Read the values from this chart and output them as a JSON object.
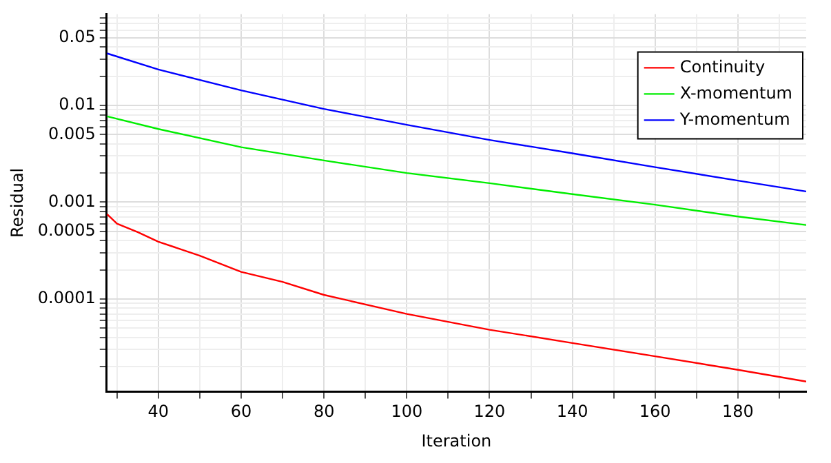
{
  "chart_data": {
    "type": "line",
    "xlabel": "Iteration",
    "ylabel": "Residual",
    "log": "y",
    "grid": true,
    "legend": "top right",
    "marker": "none",
    "line_style": "solid",
    "xlim": [
      27.5,
      196.5
    ],
    "ylim": [
      1.1e-05,
      0.088
    ],
    "xticks": [
      {
        "value": 30,
        "label": null
      },
      40,
      {
        "value": 50,
        "label": null
      },
      60,
      {
        "value": 70,
        "label": null
      },
      80,
      {
        "value": 90,
        "label": null
      },
      100,
      {
        "value": 110,
        "label": null
      },
      120,
      {
        "value": 130,
        "label": null
      },
      140,
      {
        "value": 150,
        "label": null
      },
      160,
      {
        "value": 170,
        "label": null
      },
      180,
      {
        "value": 190,
        "label": null
      }
    ],
    "yticks": [
      {
        "value": 2e-05,
        "label": null
      },
      {
        "value": 3e-05,
        "label": null
      },
      {
        "value": 4e-05,
        "label": null
      },
      {
        "value": 5e-05,
        "label": null
      },
      {
        "value": 6e-05,
        "label": null
      },
      {
        "value": 7e-05,
        "label": null
      },
      {
        "value": 8e-05,
        "label": null
      },
      {
        "value": 9e-05,
        "label": null
      },
      0.0001,
      {
        "value": 0.0002,
        "label": null
      },
      {
        "value": 0.0003,
        "label": null
      },
      {
        "value": 0.0004,
        "label": null
      },
      0.0005,
      {
        "value": 0.0006,
        "label": null
      },
      {
        "value": 0.0007,
        "label": null
      },
      {
        "value": 0.0008,
        "label": null
      },
      {
        "value": 0.0009,
        "label": null
      },
      0.001,
      {
        "value": 0.002,
        "label": null
      },
      {
        "value": 0.003,
        "label": null
      },
      {
        "value": 0.004,
        "label": null
      },
      0.005,
      {
        "value": 0.006,
        "label": null
      },
      {
        "value": 0.007,
        "label": null
      },
      {
        "value": 0.008,
        "label": null
      },
      {
        "value": 0.009,
        "label": null
      },
      0.01,
      {
        "value": 0.02,
        "label": null
      },
      {
        "value": 0.03,
        "label": null
      },
      {
        "value": 0.04,
        "label": null
      },
      0.05,
      {
        "value": 0.06,
        "label": null
      },
      {
        "value": 0.07,
        "label": null
      },
      {
        "value": 0.08,
        "label": null
      }
    ],
    "series": [
      {
        "name": "Continuity",
        "color": "#ff0000",
        "x": [
          27.6,
          30,
          35,
          40,
          50,
          60,
          70,
          80,
          100,
          120,
          140,
          160,
          180,
          196.5
        ],
        "values": [
          0.00075,
          0.0006,
          0.00049,
          0.00039,
          0.00028,
          0.00019,
          0.00015,
          0.00011,
          7e-05,
          4.8e-05,
          3.5e-05,
          2.55e-05,
          1.85e-05,
          1.4e-05
        ]
      },
      {
        "name": "X-momentum",
        "color": "#00ee00",
        "x": [
          27.6,
          40,
          60,
          80,
          100,
          120,
          140,
          160,
          180,
          196.5
        ],
        "values": [
          0.0077,
          0.0057,
          0.0037,
          0.0027,
          0.002,
          0.00157,
          0.00121,
          0.00094,
          0.00071,
          0.00058
        ]
      },
      {
        "name": "Y-momentum",
        "color": "#0000ff",
        "x": [
          27.6,
          40,
          60,
          80,
          100,
          120,
          140,
          160,
          180,
          196.5
        ],
        "values": [
          0.0345,
          0.0235,
          0.0143,
          0.0092,
          0.0063,
          0.0044,
          0.0032,
          0.0023,
          0.00167,
          0.00129
        ]
      }
    ]
  }
}
